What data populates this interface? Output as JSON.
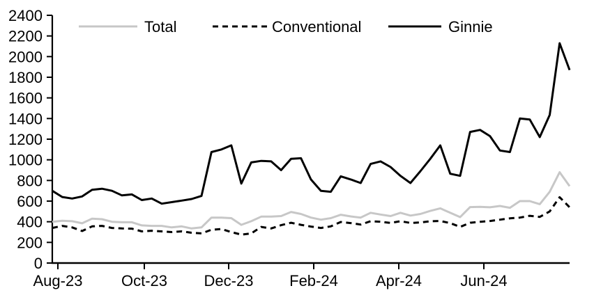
{
  "chart_data": {
    "type": "line",
    "title": "",
    "xlabel": "",
    "ylabel": "",
    "grid": false,
    "x_axis": {
      "tick_labels": [
        "Aug-23",
        "Oct-23",
        "Dec-23",
        "Feb-24",
        "Apr-24",
        "Jun-24"
      ],
      "tick_positions_weeks": [
        0.56,
        9.25,
        17.73,
        26.28,
        34.83,
        43.38
      ],
      "frequency": "weekly",
      "range_note": "weekly observations from Aug-23 through mid-Aug-24"
    },
    "y_axis": {
      "min": 0,
      "max": 2400,
      "step": 200,
      "tick_labels": [
        "0",
        "200",
        "400",
        "600",
        "800",
        "1000",
        "1200",
        "1400",
        "1600",
        "1800",
        "2000",
        "2200",
        "2400"
      ]
    },
    "legend": {
      "position": "top-inside",
      "entries": [
        "Total",
        "Conventional",
        "Ginnie"
      ]
    },
    "series": [
      {
        "name": "Total",
        "color": "#c7c7c7",
        "line_style": "solid",
        "values": [
          400,
          410,
          405,
          385,
          430,
          425,
          400,
          395,
          395,
          365,
          360,
          360,
          345,
          355,
          335,
          345,
          440,
          440,
          435,
          370,
          405,
          450,
          450,
          455,
          495,
          475,
          440,
          420,
          435,
          468,
          452,
          440,
          487,
          470,
          455,
          487,
          460,
          475,
          505,
          530,
          487,
          445,
          542,
          545,
          540,
          553,
          535,
          600,
          600,
          570,
          690,
          880,
          745
        ]
      },
      {
        "name": "Conventional",
        "color": "#000000",
        "line_style": "dashed",
        "values": [
          340,
          360,
          345,
          310,
          355,
          360,
          340,
          335,
          333,
          307,
          313,
          307,
          300,
          307,
          293,
          287,
          322,
          330,
          300,
          275,
          287,
          350,
          335,
          367,
          390,
          370,
          353,
          340,
          355,
          398,
          387,
          373,
          405,
          400,
          388,
          405,
          388,
          393,
          405,
          407,
          387,
          350,
          390,
          400,
          407,
          420,
          433,
          440,
          458,
          447,
          500,
          638,
          540
        ]
      },
      {
        "name": "Ginnie",
        "color": "#000000",
        "line_style": "solid",
        "values": [
          700,
          640,
          625,
          645,
          710,
          720,
          700,
          655,
          665,
          610,
          625,
          575,
          590,
          605,
          620,
          650,
          1075,
          1100,
          1140,
          770,
          975,
          990,
          985,
          900,
          1010,
          1015,
          810,
          700,
          690,
          840,
          810,
          775,
          960,
          985,
          930,
          845,
          775,
          890,
          1010,
          1140,
          865,
          845,
          1270,
          1290,
          1230,
          1090,
          1075,
          1400,
          1390,
          1220,
          1435,
          2130,
          1870
        ]
      }
    ]
  }
}
